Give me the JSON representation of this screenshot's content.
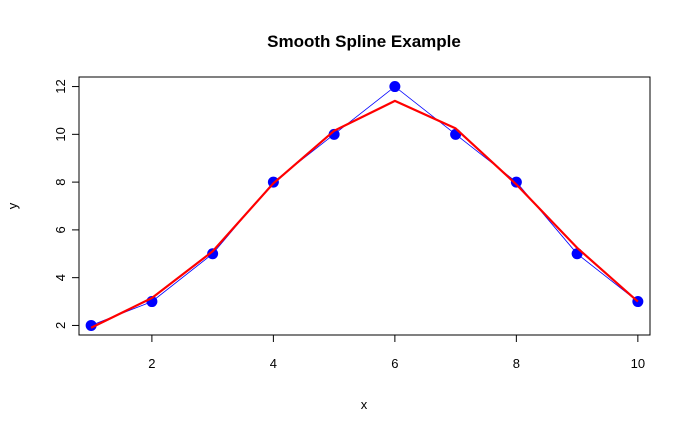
{
  "chart_data": {
    "type": "line",
    "title": "Smooth Spline Example",
    "xlabel": "x",
    "ylabel": "y",
    "xlim": [
      0.8,
      10.2
    ],
    "ylim": [
      1.6,
      12.4
    ],
    "xticks": [
      2,
      4,
      6,
      8,
      10
    ],
    "yticks": [
      2,
      4,
      6,
      8,
      10,
      12
    ],
    "grid": false,
    "series": [
      {
        "kind": "points-with-line",
        "color": "#0000ff",
        "x": [
          1,
          2,
          3,
          4,
          5,
          6,
          7,
          8,
          9,
          10
        ],
        "y": [
          2,
          3,
          5,
          8,
          10,
          12,
          10,
          8,
          5,
          3
        ]
      },
      {
        "kind": "smooth-line",
        "color": "#ff0000",
        "x": [
          1,
          2,
          3,
          4,
          5,
          6,
          7,
          8,
          9,
          10
        ],
        "y": [
          1.9,
          3.15,
          5.1,
          7.95,
          10.15,
          11.4,
          10.25,
          7.9,
          5.25,
          3.0
        ]
      }
    ]
  }
}
